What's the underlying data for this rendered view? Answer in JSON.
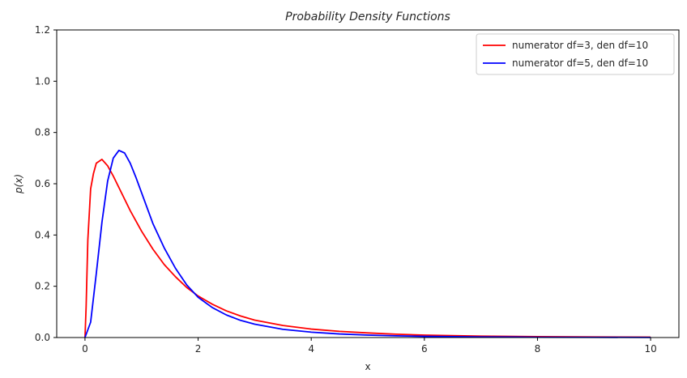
{
  "chart_data": {
    "type": "line",
    "title": "Probability Density Functions",
    "xlabel": "x",
    "ylabel": "p(x)",
    "xlim": [
      -0.5,
      10.5
    ],
    "ylim": [
      0,
      1.2
    ],
    "xticks": [
      0,
      2,
      4,
      6,
      8,
      10
    ],
    "xtick_labels": [
      "0",
      "2",
      "4",
      "6",
      "8",
      "10"
    ],
    "yticks": [
      0,
      0.2,
      0.4,
      0.6,
      0.8,
      1.0,
      1.2
    ],
    "ytick_labels": [
      "0.0",
      "0.2",
      "0.4",
      "0.6",
      "0.8",
      "1.0",
      "1.2"
    ],
    "grid": false,
    "legend_position": "top-right",
    "series": [
      {
        "name": "numerator df=3, den df=10",
        "color": "#ff0000",
        "x": [
          0,
          0.02,
          0.05,
          0.1,
          0.15,
          0.2,
          0.3,
          0.4,
          0.5,
          0.6,
          0.7,
          0.8,
          0.9,
          1.0,
          1.2,
          1.4,
          1.6,
          1.8,
          2.0,
          2.25,
          2.5,
          2.75,
          3.0,
          3.5,
          4.0,
          4.5,
          5.0,
          5.5,
          6.0,
          7.0,
          8.0,
          9.0,
          10.0
        ],
        "y": [
          0.0,
          0.12,
          0.38,
          0.58,
          0.64,
          0.68,
          0.695,
          0.67,
          0.63,
          0.585,
          0.54,
          0.495,
          0.455,
          0.415,
          0.345,
          0.285,
          0.237,
          0.195,
          0.162,
          0.13,
          0.104,
          0.084,
          0.068,
          0.047,
          0.033,
          0.024,
          0.018,
          0.013,
          0.0095,
          0.0055,
          0.0033,
          0.0021,
          0.0014
        ]
      },
      {
        "name": "numerator df=5, den df=10",
        "color": "#0000ff",
        "x": [
          0,
          0.1,
          0.2,
          0.3,
          0.4,
          0.5,
          0.6,
          0.7,
          0.8,
          0.9,
          1.0,
          1.1,
          1.2,
          1.4,
          1.6,
          1.8,
          2.0,
          2.25,
          2.5,
          2.75,
          3.0,
          3.5,
          4.0,
          4.5,
          5.0,
          5.5,
          6.0,
          7.0,
          8.0,
          9.0,
          10.0
        ],
        "y": [
          0.0,
          0.06,
          0.25,
          0.45,
          0.61,
          0.7,
          0.73,
          0.72,
          0.68,
          0.625,
          0.565,
          0.505,
          0.445,
          0.35,
          0.27,
          0.205,
          0.157,
          0.117,
          0.088,
          0.067,
          0.052,
          0.032,
          0.021,
          0.014,
          0.0095,
          0.0066,
          0.0046,
          0.0024,
          0.0013,
          0.0008,
          0.0005
        ]
      }
    ]
  }
}
